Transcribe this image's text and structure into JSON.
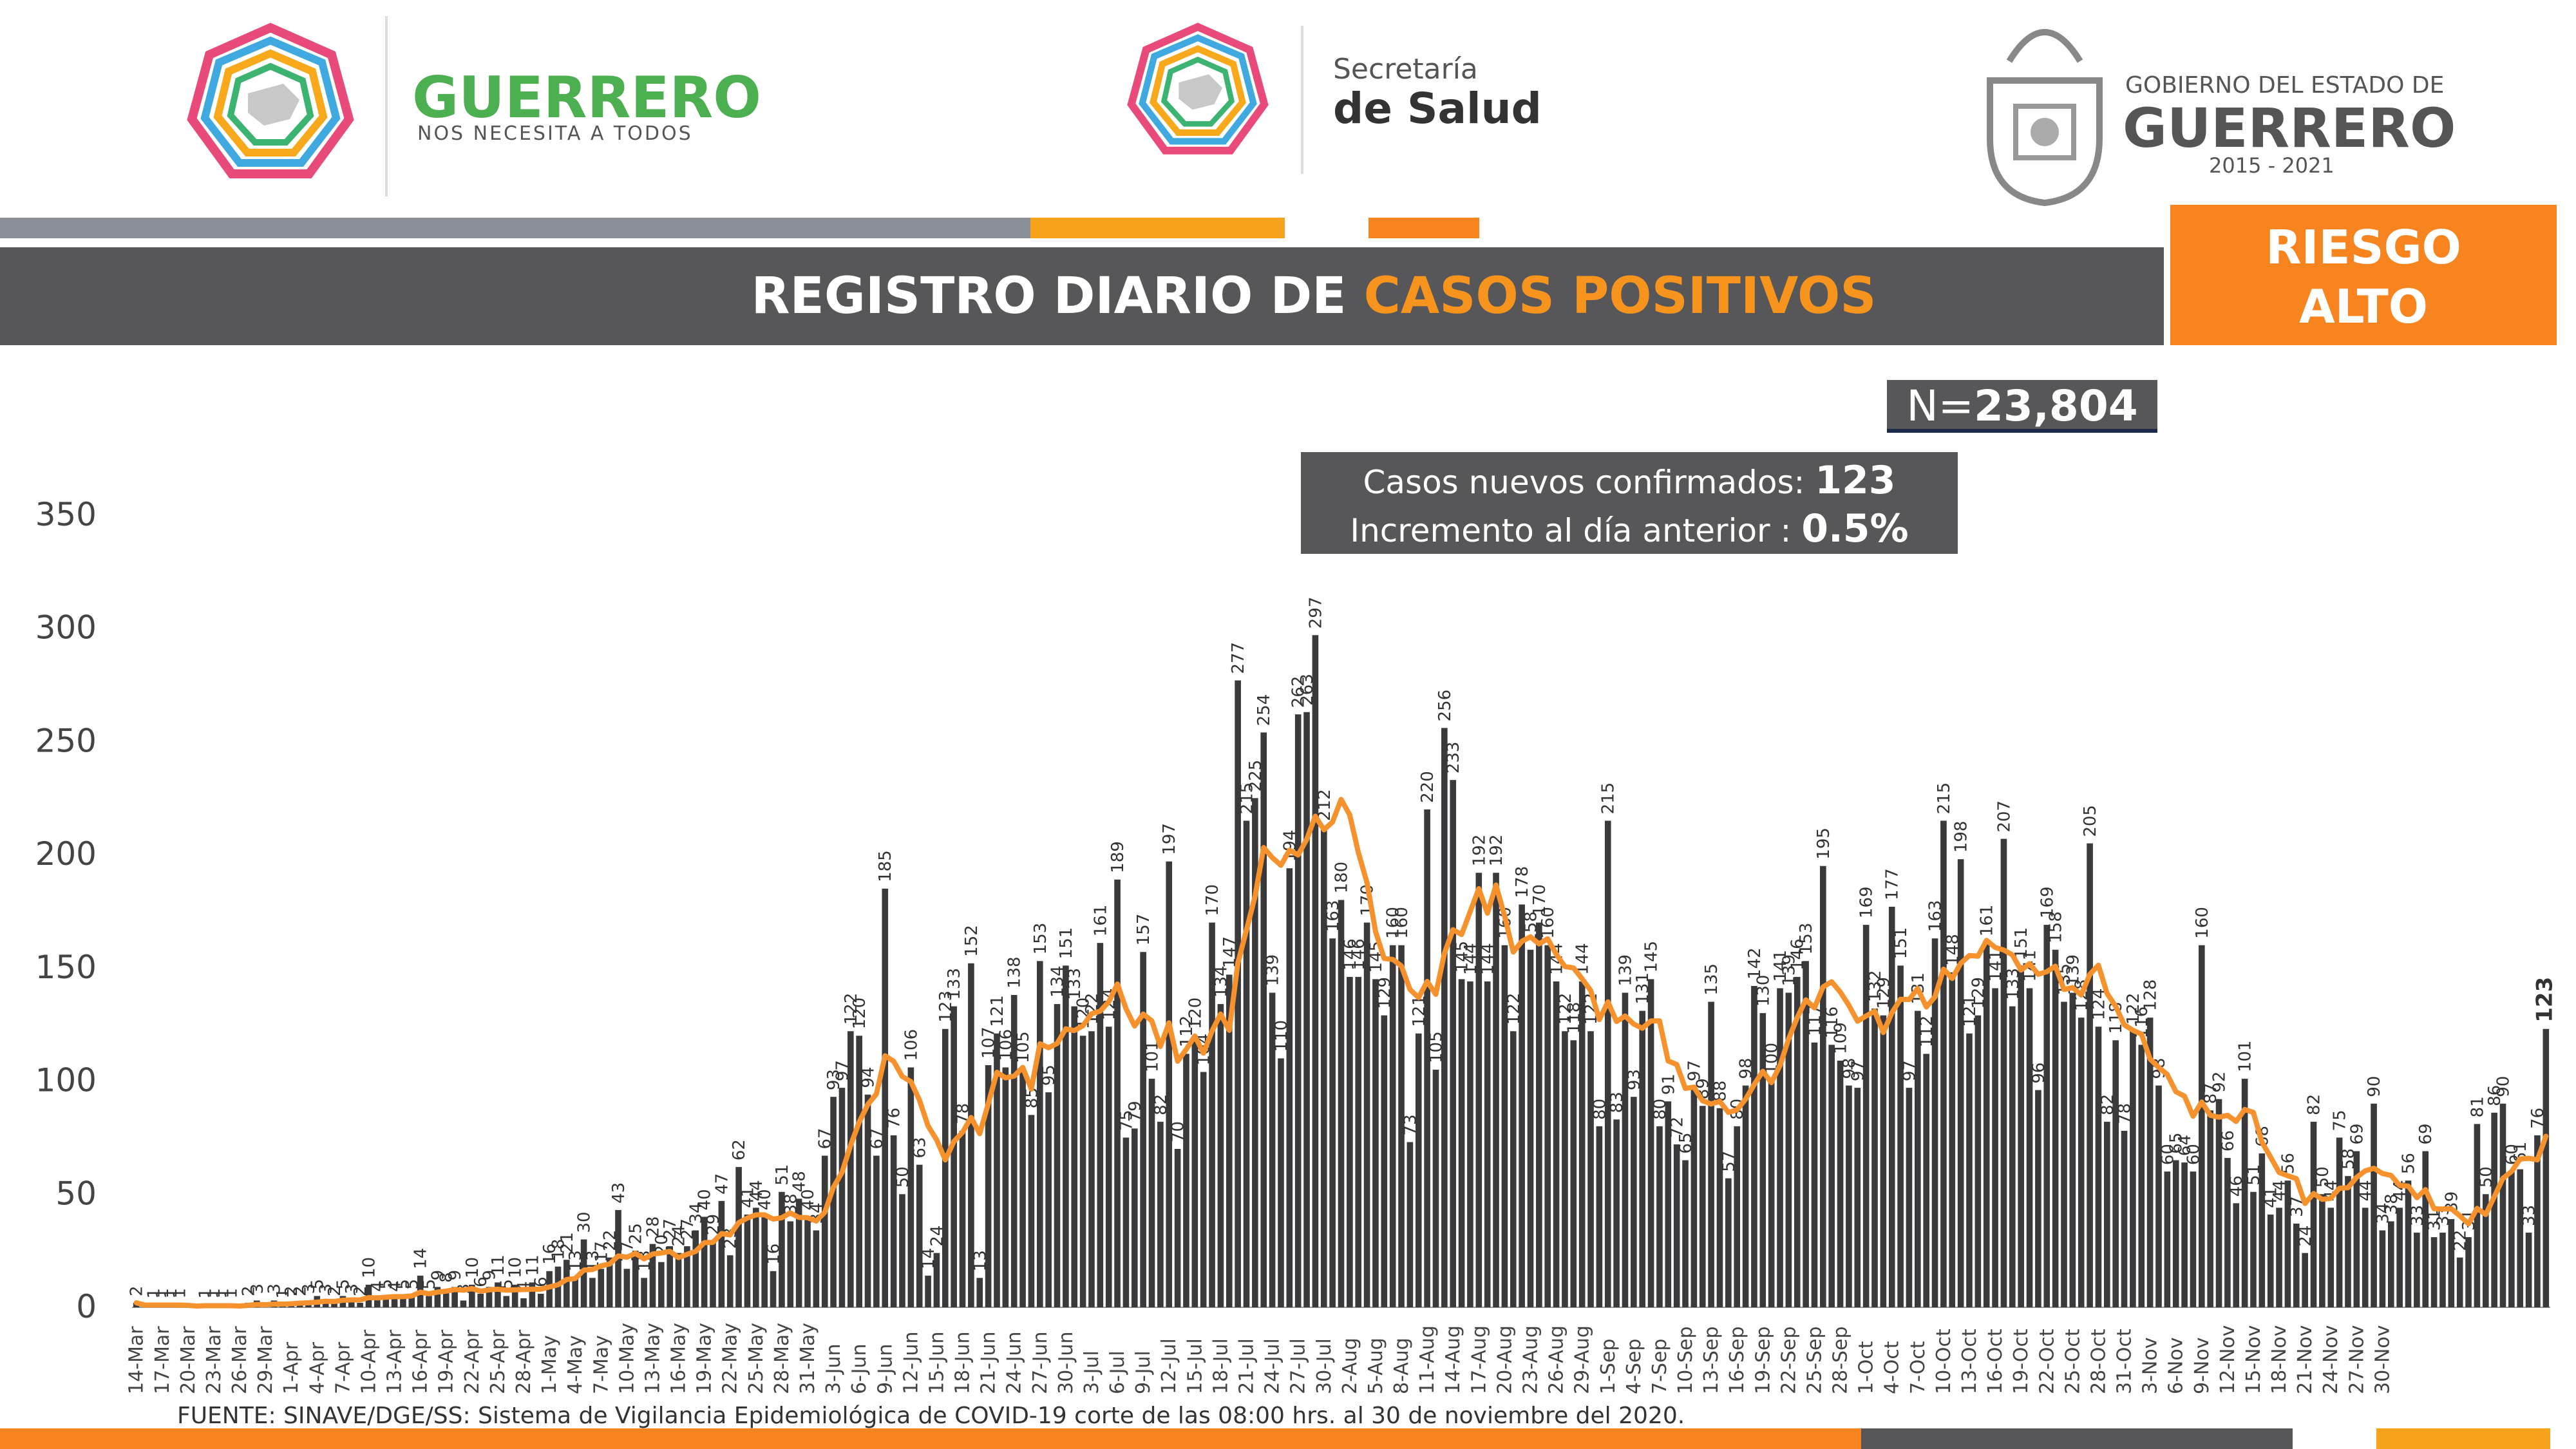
{
  "header": {
    "brand_left_title": "GUERRERO",
    "brand_left_subtitle": "NOS NECESITA A TODOS",
    "brand_mid_line1": "Secretaría",
    "brand_mid_line2": "de Salud",
    "brand_right_line1": "GOBIERNO DEL ESTADO DE",
    "brand_right_line2": "GUERRERO",
    "brand_right_years": "2015 - 2021"
  },
  "title": {
    "part1": "REGISTRO DIARIO DE ",
    "part2": "CASOS POSITIVOS"
  },
  "risk": {
    "line1": "RIESGO",
    "line2": "ALTO"
  },
  "total": {
    "prefix": "N=",
    "value": "23,804"
  },
  "summary": {
    "new_label": "Casos nuevos confirmados: ",
    "new_value": "123",
    "inc_label": "Incremento al día anterior : ",
    "inc_value": "0.5%"
  },
  "source": "FUENTE: SINAVE/DGE/SS: Sistema de Vigilancia Epidemiológica de COVID-19 corte de las 08:00 hrs. al 30 de noviembre del 2020.",
  "colors": {
    "bar": "#3a3a3c",
    "avg_line": "#f5922e",
    "accent": "#f7841e",
    "dark": "#57575a"
  },
  "chart_data": {
    "type": "bar",
    "start_date": "14-Mar",
    "end_date": "30-Nov",
    "ylim": [
      0,
      350
    ],
    "yticks": [
      0,
      50,
      100,
      150,
      200,
      250,
      300,
      350
    ],
    "xtick_labels": [
      "14-Mar",
      "17-Mar",
      "20-Mar",
      "23-Mar",
      "26-Mar",
      "29-Mar",
      "1-Apr",
      "4-Apr",
      "7-Apr",
      "10-Apr",
      "13-Apr",
      "16-Apr",
      "19-Apr",
      "22-Apr",
      "25-Apr",
      "28-Apr",
      "1-May",
      "4-May",
      "7-May",
      "10-May",
      "13-May",
      "16-May",
      "19-May",
      "22-May",
      "25-May",
      "28-May",
      "31-May",
      "3-Jun",
      "6-Jun",
      "9-Jun",
      "12-Jun",
      "15-Jun",
      "18-Jun",
      "21-Jun",
      "24-Jun",
      "27-Jun",
      "30-Jun",
      "3-Jul",
      "6-Jul",
      "9-Jul",
      "12-Jul",
      "15-Jul",
      "18-Jul",
      "21-Jul",
      "24-Jul",
      "27-Jul",
      "30-Jul",
      "2-Aug",
      "5-Aug",
      "8-Aug",
      "11-Aug",
      "14-Aug",
      "17-Aug",
      "20-Aug",
      "23-Aug",
      "26-Aug",
      "29-Aug",
      "1-Sep",
      "4-Sep",
      "7-Sep",
      "10-Sep",
      "13-Sep",
      "16-Sep",
      "19-Sep",
      "22-Sep",
      "25-Sep",
      "28-Sep",
      "1-Oct",
      "4-Oct",
      "7-Oct",
      "10-Oct",
      "13-Oct",
      "16-Oct",
      "19-Oct",
      "22-Oct",
      "25-Oct",
      "28-Oct",
      "31-Oct",
      "3-Nov",
      "6-Nov",
      "9-Nov",
      "12-Nov",
      "15-Nov",
      "18-Nov",
      "21-Nov",
      "24-Nov",
      "27-Nov",
      "30-Nov"
    ],
    "daily_cases": [
      2,
      0,
      1,
      1,
      1,
      1,
      0,
      0,
      1,
      1,
      1,
      1,
      0,
      2,
      3,
      0,
      3,
      1,
      2,
      2,
      3,
      5,
      3,
      2,
      5,
      3,
      2,
      10,
      4,
      5,
      4,
      5,
      5,
      14,
      5,
      9,
      8,
      9,
      3,
      10,
      6,
      9,
      11,
      5,
      10,
      4,
      11,
      6,
      16,
      18,
      21,
      13,
      30,
      13,
      17,
      22,
      43,
      17,
      25,
      13,
      28,
      20,
      27,
      24,
      27,
      34,
      40,
      29,
      47,
      23,
      62,
      41,
      44,
      40,
      16,
      51,
      38,
      48,
      40,
      34,
      67,
      93,
      97,
      122,
      120,
      94,
      67,
      185,
      76,
      50,
      106,
      63,
      14,
      24,
      123,
      133,
      78,
      152,
      13,
      107,
      121,
      106,
      138,
      105,
      85,
      153,
      95,
      134,
      151,
      133,
      120,
      122,
      161,
      124,
      189,
      75,
      79,
      157,
      101,
      82,
      197,
      70,
      112,
      120,
      104,
      170,
      134,
      147,
      277,
      215,
      225,
      254,
      139,
      110,
      194,
      262,
      263,
      297,
      212,
      163,
      180,
      146,
      146,
      170,
      145,
      129,
      160,
      160,
      73,
      121,
      220,
      105,
      256,
      233,
      145,
      144,
      192,
      144,
      192,
      160,
      122,
      178,
      158,
      170,
      160,
      144,
      122,
      118,
      144,
      122,
      80,
      215,
      83,
      139,
      93,
      131,
      145,
      80,
      91,
      72,
      65,
      97,
      89,
      135,
      88,
      57,
      80,
      98,
      142,
      130,
      100,
      141,
      139,
      146,
      153,
      117,
      195,
      116,
      109,
      98,
      97,
      169,
      132,
      129,
      177,
      151,
      97,
      131,
      112,
      163,
      215,
      148,
      198,
      121,
      129,
      161,
      141,
      207,
      133,
      151,
      141,
      96,
      169,
      158,
      135,
      139,
      128,
      205,
      124,
      82,
      118,
      78,
      122,
      116,
      128,
      98,
      60,
      65,
      64,
      60,
      160,
      87,
      92,
      66,
      46,
      101,
      51,
      68,
      41,
      44,
      56,
      37,
      24,
      82,
      50,
      44,
      75,
      58,
      69,
      44,
      90,
      34,
      38,
      44,
      56,
      33,
      69,
      31,
      33,
      39,
      22,
      31,
      81,
      50,
      86,
      90,
      60,
      61,
      33,
      76,
      123
    ],
    "avg_line_name": "",
    "labeled_values_note": ""
  }
}
